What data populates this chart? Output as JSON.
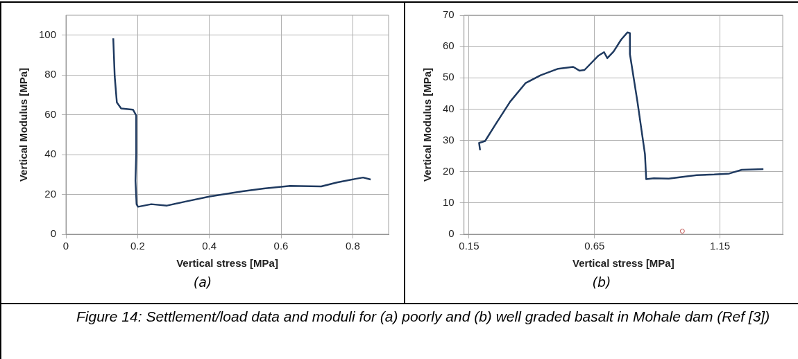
{
  "chart_data": [
    {
      "type": "line",
      "xlabel": "Vertical stress [MPa]",
      "ylabel": "Vertical Modulus [MPa]",
      "xlim": [
        0,
        0.9
      ],
      "xticks": [
        0,
        0.2,
        0.4,
        0.6,
        0.8
      ],
      "ylim": [
        0,
        110
      ],
      "yticks": [
        0,
        20,
        40,
        60,
        80,
        100
      ],
      "grid": true,
      "series": [
        {
          "color": "#1f3a60",
          "x": [
            0.132,
            0.136,
            0.142,
            0.154,
            0.187,
            0.196,
            0.196,
            0.194,
            0.197,
            0.201,
            0.238,
            0.282,
            0.333,
            0.401,
            0.493,
            0.552,
            0.625,
            0.712,
            0.756,
            0.807,
            0.829,
            0.85
          ],
          "values": [
            98.4,
            79.3,
            66.2,
            63.2,
            62.6,
            59.7,
            40,
            26.9,
            15.1,
            13.8,
            15.1,
            14.4,
            16.4,
            19.0,
            21.6,
            23.0,
            24.3,
            24.0,
            26.0,
            27.8,
            28.5,
            27.5
          ]
        }
      ],
      "annotations": [
        "(a)",
        "Figure 14: Settlement/load data and moduli for (a) poorly and (b) well graded basalt in Mohale dam (Ref [3])"
      ]
    },
    {
      "type": "line",
      "xlabel": "Vertical stress [MPa]",
      "ylabel": "Vertical Modulus [MPa]",
      "xlim": [
        0.13,
        1.4
      ],
      "xticks": [
        0.15,
        0.65,
        1.15
      ],
      "ylim": [
        0,
        70
      ],
      "yticks": [
        0,
        10,
        20,
        30,
        40,
        50,
        60,
        70
      ],
      "grid": true,
      "series": [
        {
          "color": "#1f3a60",
          "x": [
            0.194,
            0.19,
            0.214,
            0.254,
            0.314,
            0.375,
            0.435,
            0.505,
            0.565,
            0.59,
            0.61,
            0.666,
            0.688,
            0.701,
            0.726,
            0.756,
            0.781,
            0.791,
            0.791,
            0.821,
            0.851,
            0.856,
            0.886,
            0.946,
            1.057,
            1.127,
            1.187,
            1.237,
            1.323
          ],
          "values": [
            26.9,
            29.2,
            29.8,
            34.9,
            42.4,
            48.3,
            50.8,
            52.9,
            53.5,
            52.3,
            52.5,
            57.1,
            58.2,
            56.3,
            58.4,
            62.2,
            64.5,
            64.3,
            57.6,
            42.4,
            25.6,
            17.6,
            17.9,
            17.8,
            18.9,
            19.1,
            19.4,
            20.6,
            20.8
          ]
        },
        {
          "type": "scatter",
          "color": "#c0504d",
          "x": [
            1.0
          ],
          "values": [
            1.0
          ]
        }
      ],
      "annotations": [
        "(b)"
      ]
    }
  ]
}
